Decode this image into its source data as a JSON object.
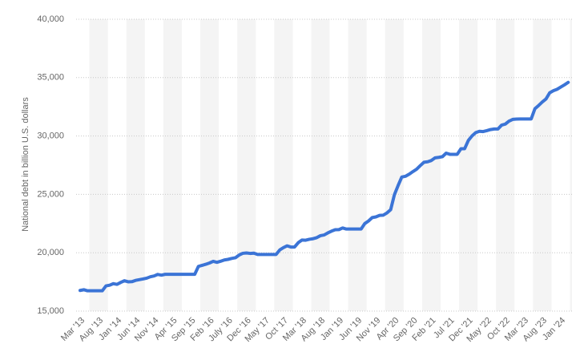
{
  "chart_data": {
    "type": "line",
    "y_axis_label": "National debt in billion U.S. dollars",
    "color": "#3b74d6",
    "grid": true,
    "ylim": [
      15000,
      40000
    ],
    "yticks": [
      {
        "value": 15000,
        "label": "15,000"
      },
      {
        "value": 20000,
        "label": "20,000"
      },
      {
        "value": 25000,
        "label": "25,000"
      },
      {
        "value": 30000,
        "label": "30,000"
      },
      {
        "value": 35000,
        "label": "35,000"
      },
      {
        "value": 40000,
        "label": "40,000"
      }
    ],
    "categories": [
      "Mar '13",
      null,
      null,
      null,
      null,
      "Aug '13",
      null,
      null,
      null,
      null,
      "Jan '14",
      null,
      null,
      null,
      null,
      "Jun '14",
      null,
      null,
      null,
      null,
      "Nov '14",
      null,
      null,
      null,
      null,
      "Apr '15",
      null,
      null,
      null,
      null,
      "Sep '15",
      null,
      null,
      null,
      null,
      "Feb '16",
      null,
      null,
      null,
      null,
      "July '16",
      null,
      null,
      null,
      null,
      "Dec '16",
      null,
      null,
      null,
      null,
      "May '17",
      null,
      null,
      null,
      null,
      "Oct '17",
      null,
      null,
      null,
      null,
      "Mar '18",
      null,
      null,
      null,
      null,
      "Aug '18",
      null,
      null,
      null,
      null,
      "Jan '19",
      null,
      null,
      null,
      null,
      "Jun '19",
      null,
      null,
      null,
      null,
      "Nov '19",
      null,
      null,
      null,
      null,
      "Apr '20",
      null,
      null,
      null,
      null,
      "Sep '20",
      null,
      null,
      null,
      null,
      "Feb '21",
      null,
      null,
      null,
      null,
      "Jul '21",
      null,
      null,
      null,
      null,
      "Dec '21",
      null,
      null,
      null,
      null,
      "May '22",
      null,
      null,
      null,
      null,
      "Oct '22",
      null,
      null,
      null,
      null,
      "Mar '23",
      null,
      null,
      null,
      null,
      "Aug '23",
      null,
      null,
      null,
      null,
      "Jan '24",
      null,
      null
    ],
    "values": [
      16770,
      16830,
      16740,
      16740,
      16740,
      16740,
      16740,
      17160,
      17220,
      17350,
      17290,
      17460,
      17600,
      17510,
      17520,
      17630,
      17690,
      17750,
      17820,
      17940,
      18010,
      18140,
      18080,
      18150,
      18150,
      18150,
      18150,
      18150,
      18150,
      18150,
      18150,
      18150,
      18830,
      18920,
      19010,
      19120,
      19260,
      19180,
      19270,
      19380,
      19430,
      19510,
      19570,
      19800,
      19950,
      19980,
      19940,
      19960,
      19850,
      19850,
      19850,
      19850,
      19850,
      19850,
      20240,
      20440,
      20590,
      20490,
      20490,
      20860,
      21090,
      21070,
      21150,
      21200,
      21290,
      21460,
      21520,
      21700,
      21850,
      21970,
      21980,
      22120,
      22030,
      22030,
      22030,
      22030,
      22030,
      22500,
      22720,
      23010,
      23070,
      23200,
      23220,
      23410,
      23690,
      24970,
      25750,
      26480,
      26550,
      26730,
      26950,
      27150,
      27460,
      27750,
      27790,
      27900,
      28130,
      28170,
      28230,
      28530,
      28430,
      28430,
      28430,
      28910,
      28910,
      29620,
      30010,
      30290,
      30400,
      30380,
      30460,
      30550,
      30600,
      30600,
      30930,
      31020,
      31270,
      31420,
      31450,
      31460,
      31460,
      31460,
      31460,
      32330,
      32610,
      32910,
      33170,
      33700,
      33880,
      34000,
      34190,
      34380,
      34590
    ]
  }
}
